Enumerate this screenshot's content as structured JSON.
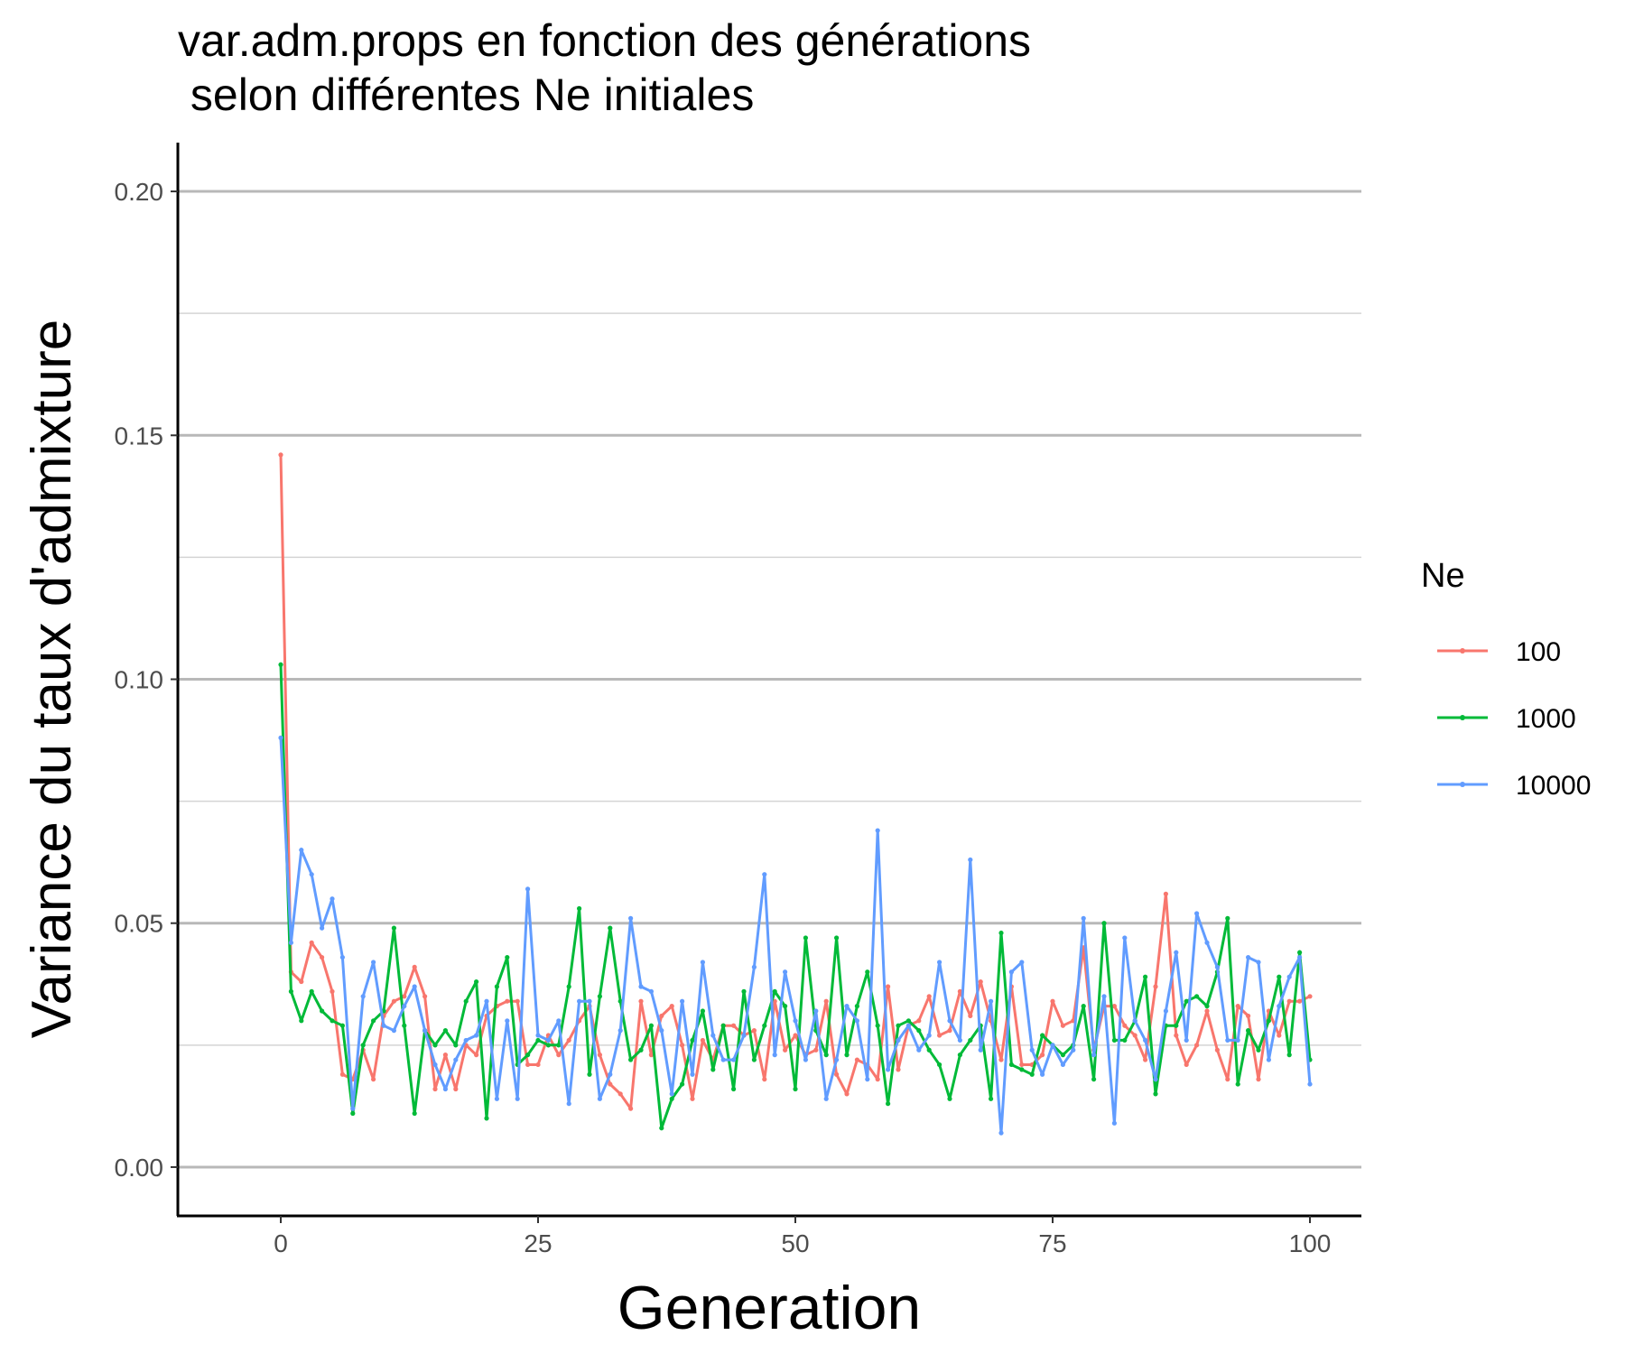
{
  "chart_data": {
    "type": "line",
    "title_lines": [
      "var.adm.props en fonction des générations",
      " selon différentes Ne initiales"
    ],
    "xlabel": "Generation",
    "ylabel": "Variance du taux d'admixture",
    "xlim": [
      -10,
      105
    ],
    "ylim": [
      -0.01,
      0.21
    ],
    "x_ticks": [
      0,
      25,
      50,
      75,
      100
    ],
    "x_tick_labels": [
      "0",
      "25",
      "50",
      "75",
      "100"
    ],
    "y_ticks": [
      0.0,
      0.05,
      0.1,
      0.15,
      0.2
    ],
    "y_tick_labels": [
      "0.00",
      "0.05",
      "0.10",
      "0.15",
      "0.20"
    ],
    "y_minor_ticks": [
      0.025,
      0.075,
      0.125,
      0.175
    ],
    "grid": "horizontal",
    "legend_title": "Ne",
    "legend_position": "right",
    "x": [
      0,
      1,
      2,
      3,
      4,
      5,
      6,
      7,
      8,
      9,
      10,
      11,
      12,
      13,
      14,
      15,
      16,
      17,
      18,
      19,
      20,
      21,
      22,
      23,
      24,
      25,
      26,
      27,
      28,
      29,
      30,
      31,
      32,
      33,
      34,
      35,
      36,
      37,
      38,
      39,
      40,
      41,
      42,
      43,
      44,
      45,
      46,
      47,
      48,
      49,
      50,
      51,
      52,
      53,
      54,
      55,
      56,
      57,
      58,
      59,
      60,
      61,
      62,
      63,
      64,
      65,
      66,
      67,
      68,
      69,
      70,
      71,
      72,
      73,
      74,
      75,
      76,
      77,
      78,
      79,
      80,
      81,
      82,
      83,
      84,
      85,
      86,
      87,
      88,
      89,
      90,
      91,
      92,
      93,
      94,
      95,
      96,
      97,
      98,
      99,
      100
    ],
    "series": [
      {
        "name": "100",
        "color": "#F8766D",
        "values": [
          0.146,
          0.04,
          0.038,
          0.046,
          0.043,
          0.036,
          0.019,
          0.018,
          0.024,
          0.018,
          0.031,
          0.034,
          0.035,
          0.041,
          0.035,
          0.016,
          0.023,
          0.016,
          0.025,
          0.023,
          0.031,
          0.033,
          0.034,
          0.034,
          0.021,
          0.021,
          0.027,
          0.023,
          0.026,
          0.03,
          0.033,
          0.023,
          0.017,
          0.015,
          0.012,
          0.034,
          0.023,
          0.031,
          0.033,
          0.025,
          0.014,
          0.026,
          0.022,
          0.029,
          0.029,
          0.027,
          0.028,
          0.018,
          0.034,
          0.024,
          0.027,
          0.023,
          0.024,
          0.034,
          0.019,
          0.015,
          0.022,
          0.021,
          0.018,
          0.037,
          0.02,
          0.029,
          0.03,
          0.035,
          0.027,
          0.028,
          0.036,
          0.031,
          0.038,
          0.03,
          0.022,
          0.037,
          0.021,
          0.021,
          0.023,
          0.034,
          0.029,
          0.03,
          0.045,
          0.024,
          0.033,
          0.033,
          0.029,
          0.027,
          0.022,
          0.037,
          0.056,
          0.027,
          0.021,
          0.025,
          0.032,
          0.024,
          0.018,
          0.033,
          0.031,
          0.018,
          0.032,
          0.027,
          0.034,
          0.034,
          0.035
        ]
      },
      {
        "name": "1000",
        "color": "#00BA38",
        "values": [
          0.103,
          0.036,
          0.03,
          0.036,
          0.032,
          0.03,
          0.029,
          0.011,
          0.025,
          0.03,
          0.032,
          0.049,
          0.029,
          0.011,
          0.028,
          0.025,
          0.028,
          0.025,
          0.034,
          0.038,
          0.01,
          0.037,
          0.043,
          0.021,
          0.023,
          0.026,
          0.025,
          0.025,
          0.037,
          0.053,
          0.019,
          0.035,
          0.049,
          0.034,
          0.022,
          0.024,
          0.029,
          0.008,
          0.014,
          0.017,
          0.026,
          0.032,
          0.02,
          0.029,
          0.016,
          0.036,
          0.022,
          0.029,
          0.036,
          0.033,
          0.016,
          0.047,
          0.028,
          0.023,
          0.047,
          0.023,
          0.033,
          0.04,
          0.029,
          0.013,
          0.029,
          0.03,
          0.028,
          0.024,
          0.021,
          0.014,
          0.023,
          0.026,
          0.029,
          0.014,
          0.048,
          0.021,
          0.02,
          0.019,
          0.027,
          0.025,
          0.023,
          0.025,
          0.033,
          0.018,
          0.05,
          0.026,
          0.026,
          0.03,
          0.039,
          0.015,
          0.029,
          0.029,
          0.034,
          0.035,
          0.033,
          0.04,
          0.051,
          0.017,
          0.028,
          0.024,
          0.03,
          0.039,
          0.023,
          0.044,
          0.022
        ]
      },
      {
        "name": "10000",
        "color": "#619CFF",
        "values": [
          0.088,
          0.046,
          0.065,
          0.06,
          0.049,
          0.055,
          0.043,
          0.012,
          0.035,
          0.042,
          0.029,
          0.028,
          0.033,
          0.037,
          0.028,
          0.021,
          0.016,
          0.022,
          0.026,
          0.027,
          0.034,
          0.014,
          0.03,
          0.014,
          0.057,
          0.027,
          0.026,
          0.03,
          0.013,
          0.034,
          0.034,
          0.014,
          0.019,
          0.028,
          0.051,
          0.037,
          0.036,
          0.028,
          0.015,
          0.034,
          0.019,
          0.042,
          0.027,
          0.022,
          0.022,
          0.027,
          0.041,
          0.06,
          0.023,
          0.04,
          0.03,
          0.022,
          0.032,
          0.014,
          0.022,
          0.033,
          0.03,
          0.018,
          0.069,
          0.02,
          0.026,
          0.029,
          0.024,
          0.027,
          0.042,
          0.03,
          0.026,
          0.063,
          0.024,
          0.034,
          0.007,
          0.04,
          0.042,
          0.024,
          0.019,
          0.025,
          0.021,
          0.024,
          0.051,
          0.023,
          0.035,
          0.009,
          0.047,
          0.03,
          0.026,
          0.018,
          0.032,
          0.044,
          0.026,
          0.052,
          0.046,
          0.041,
          0.026,
          0.026,
          0.043,
          0.042,
          0.022,
          0.033,
          0.039,
          0.043,
          0.017
        ]
      }
    ]
  }
}
